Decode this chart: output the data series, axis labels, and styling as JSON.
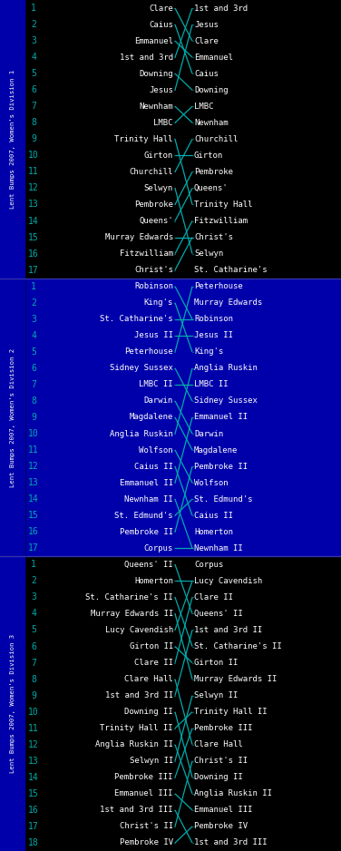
{
  "bg_div1": "#000000",
  "bg_div2": "#0000aa",
  "bg_div3": "#000000",
  "sidebar_color": "#0000aa",
  "text_color": "#ffffff",
  "line_color": "#00aaaa",
  "rownum_color": "#00aaaa",
  "name_fontsize": 6.5,
  "rownum_fontsize": 7,
  "sidebar_fontsize": 5.2,
  "divisions": [
    {
      "sidebar": "Lent Bumps 2007, Women's Division 1",
      "start_crews": [
        "Clare",
        "Caius",
        "Emmanuel",
        "1st and 3rd",
        "Downing",
        "Jesus",
        "Newnham",
        "LMBC",
        "Trinity Hall",
        "Girton",
        "Churchill",
        "Selwyn",
        "Pembroke",
        "Queens'",
        "Murray Edwards",
        "Fitzwilliam",
        "Christ's"
      ],
      "end_crews": [
        "1st and 3rd",
        "Jesus",
        "Clare",
        "Emmanuel",
        "Caius",
        "Downing",
        "LMBC",
        "Newnham",
        "Churchill",
        "Girton",
        "Pembroke",
        "Queens'",
        "Trinity Hall",
        "Fitzwilliam",
        "Christ's",
        "Selwyn",
        "St. Catharine's"
      ]
    },
    {
      "sidebar": "Lent Bumps 2007, Women's Division 2",
      "start_crews": [
        "Robinson",
        "King's",
        "St. Catharine's",
        "Jesus II",
        "Peterhouse",
        "Sidney Sussex",
        "LMBC II",
        "Darwin",
        "Magdalene",
        "Anglia Ruskin",
        "Wolfson",
        "Caius II",
        "Emmanuel II",
        "Newnham II",
        "St. Edmund's",
        "Pembroke II",
        "Corpus"
      ],
      "end_crews": [
        "Peterhouse",
        "Murray Edwards",
        "Robinson",
        "Jesus II",
        "King's",
        "Anglia Ruskin",
        "LMBC II",
        "Sidney Sussex",
        "Emmanuel II",
        "Darwin",
        "Magdalene",
        "Pembroke II",
        "Wolfson",
        "St. Edmund's",
        "Caius II",
        "Homerton",
        "Newnham II"
      ]
    },
    {
      "sidebar": "Lent Bumps 2007, Women's Division 3",
      "start_crews": [
        "Queens' II",
        "Homerton",
        "St. Catharine's II",
        "Murray Edwards II",
        "Lucy Cavendish",
        "Girton II",
        "Clare II",
        "Clare Hall",
        "1st and 3rd II",
        "Downing II",
        "Trinity Hall II",
        "Anglia Ruskin II",
        "Selwyn II",
        "Pembroke III",
        "Emmanuel III",
        "1st and 3rd III",
        "Christ's II",
        "Pembroke IV"
      ],
      "end_crews": [
        "Corpus",
        "Lucy Cavendish",
        "Clare II",
        "Queens' II",
        "1st and 3rd II",
        "St. Catharine's II",
        "Girton II",
        "Murray Edwards II",
        "Selwyn II",
        "Trinity Hall II",
        "Pembroke III",
        "Clare Hall",
        "Christ's II",
        "Downing II",
        "Anglia Ruskin II",
        "Emmanuel III",
        "Pembroke IV",
        "1st and 3rd III"
      ]
    }
  ]
}
